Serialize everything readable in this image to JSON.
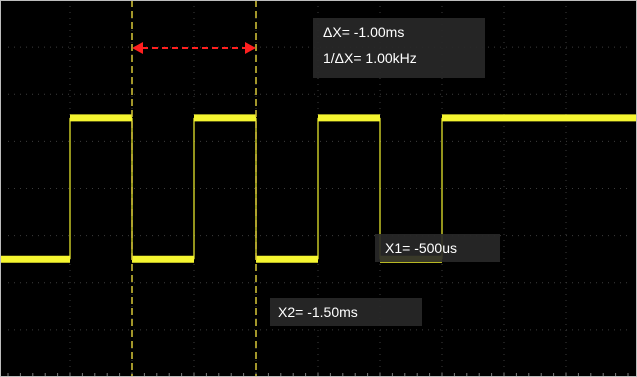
{
  "colors": {
    "screen_background": "#000000",
    "frame": "#bdbdbd",
    "grid": "#3c3c3c",
    "trace": "#f5f530",
    "cursor": "#d8c838",
    "delta_arrow": "#ff2020",
    "readout_background": "#282828",
    "readout_text": "#ffffff"
  },
  "grid": {
    "divisions_x": 10,
    "divisions_y": 8,
    "style": "dotted"
  },
  "cursors": {
    "x1": {
      "label": "X1= -500us",
      "time_ms": -0.5
    },
    "x2": {
      "label": "X2= -1.50ms",
      "time_ms": -1.5
    }
  },
  "measurement": {
    "delta_x": "ΔX= -1.00ms",
    "inverse_delta_x": "1/ΔX= 1.00kHz"
  },
  "waveform": {
    "type": "square",
    "frequency_khz": 1.0,
    "duty_cycle": 0.5,
    "level_high_div": 1.5,
    "level_low_div": -1.5
  }
}
